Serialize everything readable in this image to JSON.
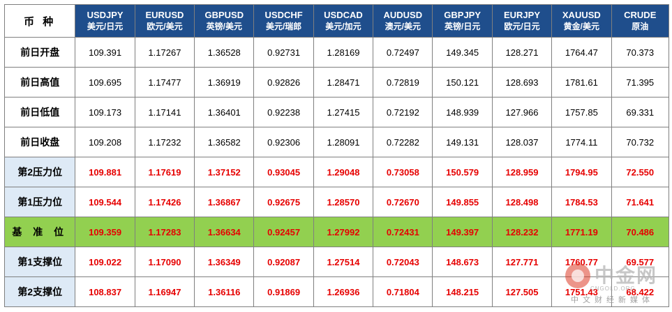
{
  "header": {
    "corner_label": "币 种",
    "columns": [
      {
        "code": "USDJPY",
        "cn": "美元/日元"
      },
      {
        "code": "EURUSD",
        "cn": "欧元/美元"
      },
      {
        "code": "GBPUSD",
        "cn": "英镑/美元"
      },
      {
        "code": "USDCHF",
        "cn": "美元/瑞郎"
      },
      {
        "code": "USDCAD",
        "cn": "美元/加元"
      },
      {
        "code": "AUDUSD",
        "cn": "澳元/美元"
      },
      {
        "code": "GBPJPY",
        "cn": "英镑/日元"
      },
      {
        "code": "EURJPY",
        "cn": "欧元/日元"
      },
      {
        "code": "XAUUSD",
        "cn": "黄金/美元"
      },
      {
        "code": "CRUDE",
        "cn": "原油"
      }
    ]
  },
  "rows": [
    {
      "label": "前日开盘",
      "kind": "plain",
      "values": [
        "109.391",
        "1.17267",
        "1.36528",
        "0.92731",
        "1.28169",
        "0.72497",
        "149.345",
        "128.271",
        "1764.47",
        "70.373"
      ]
    },
    {
      "label": "前日高值",
      "kind": "plain",
      "values": [
        "109.695",
        "1.17477",
        "1.36919",
        "0.92826",
        "1.28471",
        "0.72819",
        "150.121",
        "128.693",
        "1781.61",
        "71.395"
      ]
    },
    {
      "label": "前日低值",
      "kind": "plain",
      "values": [
        "109.173",
        "1.17141",
        "1.36401",
        "0.92238",
        "1.27415",
        "0.72192",
        "148.939",
        "127.966",
        "1757.85",
        "69.331"
      ]
    },
    {
      "label": "前日收盘",
      "kind": "plain",
      "values": [
        "109.208",
        "1.17232",
        "1.36582",
        "0.92306",
        "1.28091",
        "0.72282",
        "149.131",
        "128.037",
        "1774.11",
        "70.732"
      ]
    },
    {
      "label": "第2压力位",
      "kind": "level",
      "values": [
        "109.881",
        "1.17619",
        "1.37152",
        "0.93045",
        "1.29048",
        "0.73058",
        "150.579",
        "128.959",
        "1794.95",
        "72.550"
      ]
    },
    {
      "label": "第1压力位",
      "kind": "level",
      "values": [
        "109.544",
        "1.17426",
        "1.36867",
        "0.92675",
        "1.28570",
        "0.72670",
        "149.855",
        "128.498",
        "1784.53",
        "71.641"
      ]
    },
    {
      "label": "基 准 位",
      "kind": "pivot",
      "values": [
        "109.359",
        "1.17283",
        "1.36634",
        "0.92457",
        "1.27992",
        "0.72431",
        "149.397",
        "128.232",
        "1771.19",
        "70.486"
      ]
    },
    {
      "label": "第1支撑位",
      "kind": "level",
      "values": [
        "109.022",
        "1.17090",
        "1.36349",
        "0.92087",
        "1.27514",
        "0.72043",
        "148.673",
        "127.771",
        "1760.77",
        "69.577"
      ]
    },
    {
      "label": "第2支撑位",
      "kind": "level",
      "values": [
        "108.837",
        "1.16947",
        "1.36116",
        "0.91869",
        "1.26936",
        "0.71804",
        "148.215",
        "127.505",
        "1751.43",
        "68.422"
      ]
    }
  ],
  "watermark": {
    "title": "中金网",
    "domain": "CNGOLD.ORG",
    "slogan": "中文财经新媒体"
  },
  "colors": {
    "header_bg": "#1f4e8c",
    "header_text": "#ffffff",
    "level_label_bg": "#deeaf6",
    "pivot_bg": "#92d050",
    "level_value_text": "#e60000",
    "border": "#7f7f7f"
  }
}
